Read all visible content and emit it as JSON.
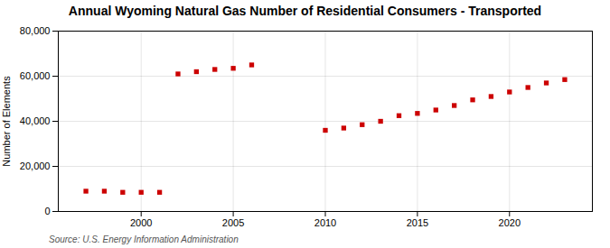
{
  "chart_data": {
    "type": "scatter",
    "title": "Annual Wyoming Natural Gas Number of Residential Consumers - Transported",
    "ylabel": "Number of Elements",
    "source": "Source: U.S. Energy Information Administration",
    "x": [
      1997,
      1998,
      1999,
      2000,
      2001,
      2002,
      2003,
      2004,
      2005,
      2006,
      2010,
      2011,
      2012,
      2013,
      2014,
      2015,
      2016,
      2017,
      2018,
      2019,
      2020,
      2021,
      2022,
      2023
    ],
    "values": [
      9000,
      9000,
      8500,
      8500,
      8500,
      61000,
      62000,
      63000,
      63500,
      65000,
      36000,
      37000,
      38500,
      40000,
      42500,
      43500,
      45000,
      47000,
      49500,
      51000,
      53000,
      55000,
      57000,
      58500
    ],
    "color": "#cc0000",
    "marker": "square",
    "xlim": [
      1995.5,
      2024.5
    ],
    "ylim": [
      0,
      80000
    ],
    "xticks": [
      2000,
      2005,
      2010,
      2015,
      2020
    ],
    "yticks": [
      0,
      {
        "value": 20000,
        "label": "20,000"
      },
      {
        "value": 40000,
        "label": "40,000"
      },
      {
        "value": 60000,
        "label": "60,000"
      },
      {
        "value": 80000,
        "label": "80,000"
      }
    ],
    "grid": true
  }
}
